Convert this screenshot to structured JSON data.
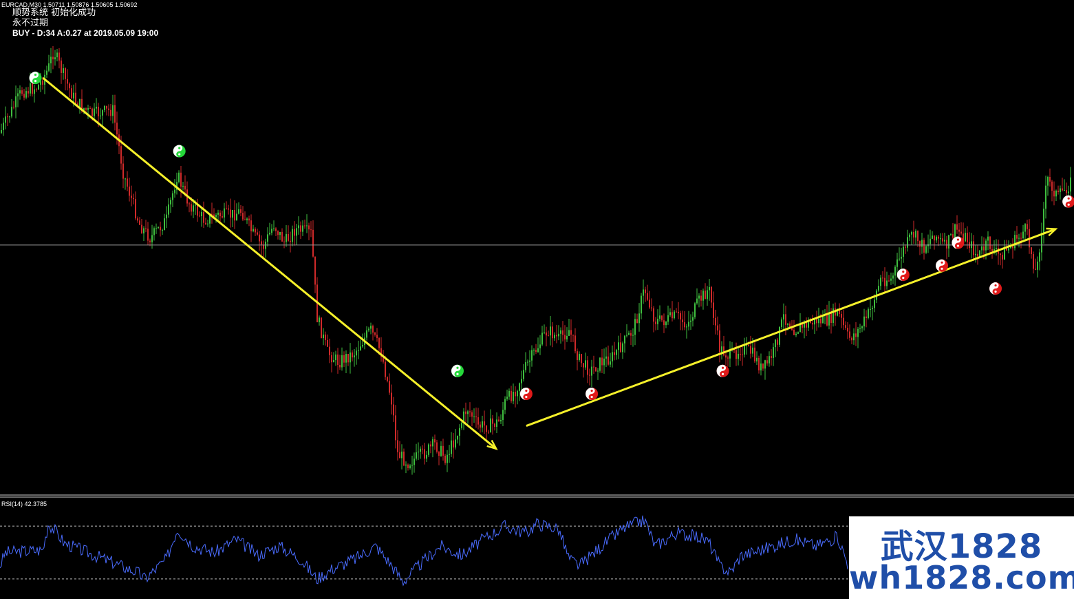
{
  "header": {
    "symbol_line": "EURCAD,M30  1.50711 1.50876 1.50605 1.50692",
    "system_status": "顺势系统 初始化成功",
    "expiry": "永不过期",
    "signal_line": "BUY - D:34 A:0.27 at 2019.05.09 19:00"
  },
  "indicator": {
    "label": "RSI(14) 42.3785"
  },
  "watermark": {
    "line1": "武汉1828",
    "line2": "wh1828.com"
  },
  "colors": {
    "background": "#000000",
    "bull_bar": "#3fbf3f",
    "bear_bar": "#d02a2a",
    "trend_arrow": "#f5f02a",
    "rsi_line": "#4a6cff",
    "buy_marker": "#25d83a",
    "sell_marker": "#e01a1a",
    "level_line": "#9a9a9a",
    "watermark_text": "#1f4ea8"
  },
  "chart_data": {
    "type": "candlestick",
    "symbol": "EURCAD",
    "timeframe": "M30",
    "last_bar": {
      "open": 1.50711,
      "high": 1.50876,
      "low": 1.50605,
      "close": 1.50692
    },
    "price_path": [
      [
        0,
        0.23
      ],
      [
        0.02,
        0.14
      ],
      [
        0.035,
        0.13
      ],
      [
        0.045,
        0.09
      ],
      [
        0.05,
        0.05
      ],
      [
        0.06,
        0.11
      ],
      [
        0.07,
        0.16
      ],
      [
        0.085,
        0.19
      ],
      [
        0.105,
        0.18
      ],
      [
        0.115,
        0.32
      ],
      [
        0.13,
        0.43
      ],
      [
        0.14,
        0.46
      ],
      [
        0.155,
        0.42
      ],
      [
        0.165,
        0.32
      ],
      [
        0.175,
        0.38
      ],
      [
        0.19,
        0.42
      ],
      [
        0.2,
        0.41
      ],
      [
        0.215,
        0.41
      ],
      [
        0.225,
        0.4
      ],
      [
        0.235,
        0.45
      ],
      [
        0.245,
        0.48
      ],
      [
        0.255,
        0.43
      ],
      [
        0.265,
        0.47
      ],
      [
        0.275,
        0.44
      ],
      [
        0.29,
        0.45
      ],
      [
        0.295,
        0.63
      ],
      [
        0.305,
        0.71
      ],
      [
        0.315,
        0.73
      ],
      [
        0.33,
        0.71
      ],
      [
        0.345,
        0.66
      ],
      [
        0.355,
        0.71
      ],
      [
        0.365,
        0.82
      ],
      [
        0.37,
        0.93
      ],
      [
        0.38,
        0.95
      ],
      [
        0.395,
        0.93
      ],
      [
        0.405,
        0.91
      ],
      [
        0.415,
        0.94
      ],
      [
        0.425,
        0.89
      ],
      [
        0.435,
        0.83
      ],
      [
        0.445,
        0.87
      ],
      [
        0.455,
        0.87
      ],
      [
        0.465,
        0.86
      ],
      [
        0.47,
        0.82
      ],
      [
        0.48,
        0.79
      ],
      [
        0.49,
        0.74
      ],
      [
        0.5,
        0.7
      ],
      [
        0.51,
        0.66
      ],
      [
        0.52,
        0.68
      ],
      [
        0.53,
        0.66
      ],
      [
        0.54,
        0.73
      ],
      [
        0.55,
        0.75
      ],
      [
        0.56,
        0.73
      ],
      [
        0.57,
        0.72
      ],
      [
        0.58,
        0.69
      ],
      [
        0.59,
        0.66
      ],
      [
        0.6,
        0.57
      ],
      [
        0.61,
        0.64
      ],
      [
        0.62,
        0.64
      ],
      [
        0.63,
        0.63
      ],
      [
        0.64,
        0.65
      ],
      [
        0.65,
        0.6
      ],
      [
        0.66,
        0.57
      ],
      [
        0.67,
        0.7
      ],
      [
        0.68,
        0.72
      ],
      [
        0.69,
        0.7
      ],
      [
        0.7,
        0.71
      ],
      [
        0.71,
        0.75
      ],
      [
        0.72,
        0.71
      ],
      [
        0.73,
        0.63
      ],
      [
        0.74,
        0.66
      ],
      [
        0.75,
        0.65
      ],
      [
        0.76,
        0.64
      ],
      [
        0.77,
        0.64
      ],
      [
        0.78,
        0.62
      ],
      [
        0.79,
        0.68
      ],
      [
        0.8,
        0.66
      ],
      [
        0.81,
        0.62
      ],
      [
        0.82,
        0.55
      ],
      [
        0.83,
        0.55
      ],
      [
        0.84,
        0.49
      ],
      [
        0.85,
        0.45
      ],
      [
        0.86,
        0.48
      ],
      [
        0.87,
        0.45
      ],
      [
        0.88,
        0.48
      ],
      [
        0.89,
        0.44
      ],
      [
        0.9,
        0.46
      ],
      [
        0.91,
        0.5
      ],
      [
        0.92,
        0.47
      ],
      [
        0.93,
        0.5
      ],
      [
        0.94,
        0.48
      ],
      [
        0.955,
        0.44
      ],
      [
        0.965,
        0.54
      ],
      [
        0.975,
        0.33
      ],
      [
        0.985,
        0.37
      ],
      [
        1.0,
        0.33
      ]
    ],
    "horizontal_level": 0.475,
    "trend_arrows": [
      {
        "label": "downtrend",
        "from": [
          0.04,
          0.11
        ],
        "to": [
          0.462,
          0.92
        ]
      },
      {
        "label": "uptrend",
        "from": [
          0.49,
          0.87
        ],
        "to": [
          0.983,
          0.44
        ]
      }
    ],
    "signal_markers": [
      {
        "type": "buy",
        "pos": [
          0.033,
          0.11
        ]
      },
      {
        "type": "buy",
        "pos": [
          0.167,
          0.27
        ]
      },
      {
        "type": "buy",
        "pos": [
          0.426,
          0.75
        ]
      },
      {
        "type": "sell",
        "pos": [
          0.49,
          0.8
        ]
      },
      {
        "type": "sell",
        "pos": [
          0.551,
          0.8
        ]
      },
      {
        "type": "sell",
        "pos": [
          0.673,
          0.75
        ]
      },
      {
        "type": "sell",
        "pos": [
          0.841,
          0.54
        ]
      },
      {
        "type": "sell",
        "pos": [
          0.877,
          0.52
        ]
      },
      {
        "type": "sell",
        "pos": [
          0.892,
          0.47
        ]
      },
      {
        "type": "sell",
        "pos": [
          0.927,
          0.57
        ]
      },
      {
        "type": "sell",
        "pos": [
          0.995,
          0.38
        ]
      }
    ],
    "rsi": {
      "period": 14,
      "last": 42.3785,
      "levels": [
        70,
        30
      ],
      "path": [
        [
          0.0,
          40
        ],
        [
          0.005,
          50
        ],
        [
          0.04,
          52
        ],
        [
          0.045,
          72
        ],
        [
          0.052,
          66
        ],
        [
          0.06,
          57
        ],
        [
          0.128,
          35
        ],
        [
          0.135,
          30
        ],
        [
          0.155,
          45
        ],
        [
          0.165,
          68
        ],
        [
          0.18,
          55
        ],
        [
          0.2,
          50
        ],
        [
          0.22,
          60
        ],
        [
          0.24,
          48
        ],
        [
          0.26,
          55
        ],
        [
          0.28,
          45
        ],
        [
          0.295,
          30
        ],
        [
          0.31,
          38
        ],
        [
          0.33,
          45
        ],
        [
          0.35,
          55
        ],
        [
          0.365,
          40
        ],
        [
          0.375,
          28
        ],
        [
          0.39,
          40
        ],
        [
          0.41,
          55
        ],
        [
          0.43,
          48
        ],
        [
          0.45,
          60
        ],
        [
          0.47,
          70
        ],
        [
          0.49,
          65
        ],
        [
          0.5,
          72
        ],
        [
          0.52,
          68
        ],
        [
          0.53,
          45
        ],
        [
          0.54,
          40
        ],
        [
          0.56,
          55
        ],
        [
          0.58,
          68
        ],
        [
          0.6,
          75
        ],
        [
          0.61,
          55
        ],
        [
          0.63,
          65
        ],
        [
          0.65,
          62
        ],
        [
          0.66,
          58
        ],
        [
          0.67,
          40
        ],
        [
          0.68,
          35
        ],
        [
          0.69,
          48
        ],
        [
          0.7,
          50
        ],
        [
          0.72,
          55
        ],
        [
          0.74,
          60
        ],
        [
          0.76,
          55
        ],
        [
          0.78,
          62
        ],
        [
          0.79,
          40
        ]
      ]
    }
  }
}
